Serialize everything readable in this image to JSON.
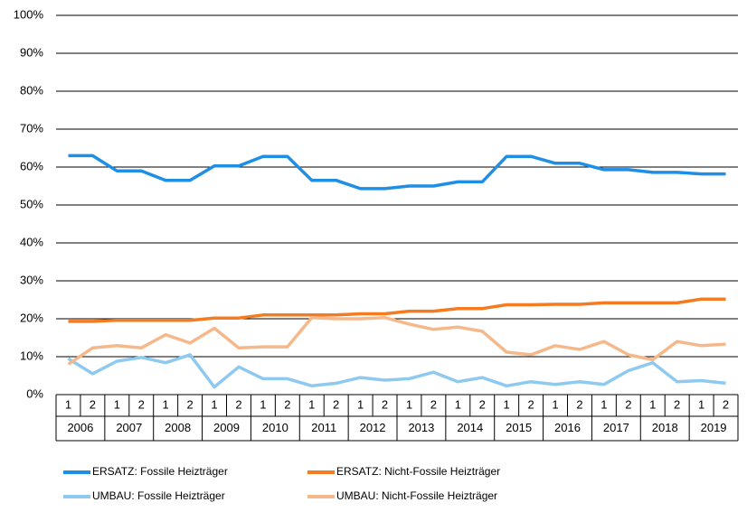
{
  "chart_data": {
    "type": "line",
    "categories": [
      "1",
      "2",
      "1",
      "2",
      "1",
      "2",
      "1",
      "2",
      "1",
      "2",
      "1",
      "2",
      "1",
      "2",
      "1",
      "2",
      "1",
      "2",
      "1",
      "2",
      "1",
      "2",
      "1",
      "2",
      "1",
      "2",
      "1",
      "2"
    ],
    "groups": [
      "2006",
      "2007",
      "2008",
      "2009",
      "2010",
      "2011",
      "2012",
      "2013",
      "2014",
      "2015",
      "2016",
      "2017",
      "2018",
      "2019"
    ],
    "series": [
      {
        "name": "ERSATZ: Fossile Heizträger",
        "color": "#1f8fe5",
        "values": [
          63,
          63,
          59,
          59,
          56.5,
          56.5,
          60.3,
          60.3,
          62.8,
          62.8,
          56.5,
          56.5,
          54.3,
          54.3,
          55,
          55,
          56.1,
          56.1,
          62.8,
          62.8,
          61,
          61,
          59.3,
          59.3,
          58.6,
          58.6,
          58.2,
          58.2
        ]
      },
      {
        "name": "ERSATZ: Nicht-Fossile Heizträger",
        "color": "#f47b20",
        "values": [
          19.3,
          19.3,
          19.6,
          19.6,
          19.6,
          19.6,
          20.2,
          20.2,
          21,
          21,
          21,
          21,
          21.3,
          21.3,
          22,
          22,
          22.7,
          22.7,
          23.7,
          23.7,
          23.8,
          23.8,
          24.2,
          24.2,
          24.2,
          24.2,
          25.2,
          25.2
        ]
      },
      {
        "name": "UMBAU: Fossile Heizträger",
        "color": "#8ec9f0",
        "values": [
          9.5,
          5.5,
          8.8,
          9.8,
          8.4,
          10.5,
          2,
          7.3,
          4.2,
          4.2,
          2.3,
          3,
          4.5,
          3.8,
          4.2,
          5.9,
          3.4,
          4.5,
          2.3,
          3.4,
          2.7,
          3.4,
          2.7,
          6.3,
          8.4,
          3.4,
          3.7,
          3
        ]
      },
      {
        "name": "UMBAU: Nicht-Fossile Heizträger",
        "color": "#f5b88a",
        "values": [
          8,
          12.3,
          12.9,
          12.3,
          15.8,
          13.6,
          17.5,
          12.3,
          12.6,
          12.6,
          20.3,
          20,
          20,
          20.3,
          18.6,
          17.2,
          17.8,
          16.7,
          11.2,
          10.5,
          12.9,
          11.9,
          14,
          10.5,
          9.2,
          14,
          12.9,
          13.3
        ]
      }
    ],
    "ylim": [
      0,
      100
    ],
    "yticks": [
      {
        "value": 0,
        "label": "0%"
      },
      {
        "value": 10,
        "label": "10%"
      },
      {
        "value": 20,
        "label": "20%"
      },
      {
        "value": 30,
        "label": "30%"
      },
      {
        "value": 40,
        "label": "40%"
      },
      {
        "value": 50,
        "label": "50%"
      },
      {
        "value": 60,
        "label": "60%"
      },
      {
        "value": 70,
        "label": "70%"
      },
      {
        "value": 80,
        "label": "80%"
      },
      {
        "value": 90,
        "label": "90%"
      },
      {
        "value": 100,
        "label": "100%"
      }
    ],
    "grid": true,
    "legend": "bottom"
  }
}
